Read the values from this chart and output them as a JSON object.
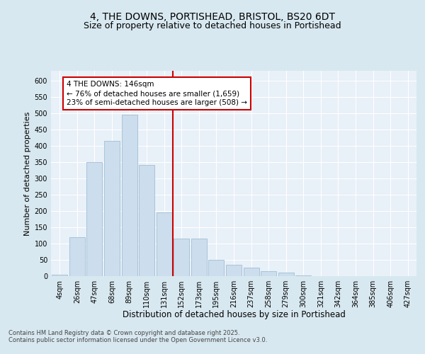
{
  "title": "4, THE DOWNS, PORTISHEAD, BRISTOL, BS20 6DT",
  "subtitle": "Size of property relative to detached houses in Portishead",
  "xlabel": "Distribution of detached houses by size in Portishead",
  "ylabel": "Number of detached properties",
  "footer": "Contains HM Land Registry data © Crown copyright and database right 2025.\nContains public sector information licensed under the Open Government Licence v3.0.",
  "bar_labels": [
    "4sqm",
    "26sqm",
    "47sqm",
    "68sqm",
    "89sqm",
    "110sqm",
    "131sqm",
    "152sqm",
    "173sqm",
    "195sqm",
    "216sqm",
    "237sqm",
    "258sqm",
    "279sqm",
    "300sqm",
    "321sqm",
    "342sqm",
    "364sqm",
    "385sqm",
    "406sqm",
    "427sqm"
  ],
  "bar_values": [
    5,
    120,
    350,
    415,
    495,
    340,
    195,
    115,
    115,
    50,
    35,
    25,
    15,
    10,
    3,
    1,
    1,
    0,
    1,
    0,
    0
  ],
  "bar_color": "#ccdded",
  "bar_edgecolor": "#a8c4d8",
  "vline_x": 7,
  "vline_color": "#cc0000",
  "annotation_text": "4 THE DOWNS: 146sqm\n← 76% of detached houses are smaller (1,659)\n23% of semi-detached houses are larger (508) →",
  "annotation_box_facecolor": "#ffffff",
  "annotation_box_edgecolor": "#cc0000",
  "ylim": [
    0,
    630
  ],
  "yticks": [
    0,
    50,
    100,
    150,
    200,
    250,
    300,
    350,
    400,
    450,
    500,
    550,
    600
  ],
  "bg_color": "#d8e8f0",
  "plot_bg_color": "#e8f0f8",
  "grid_color": "#ffffff",
  "title_fontsize": 10,
  "subtitle_fontsize": 9,
  "xlabel_fontsize": 8.5,
  "ylabel_fontsize": 8,
  "tick_fontsize": 7,
  "annot_fontsize": 7.5,
  "footer_fontsize": 6
}
